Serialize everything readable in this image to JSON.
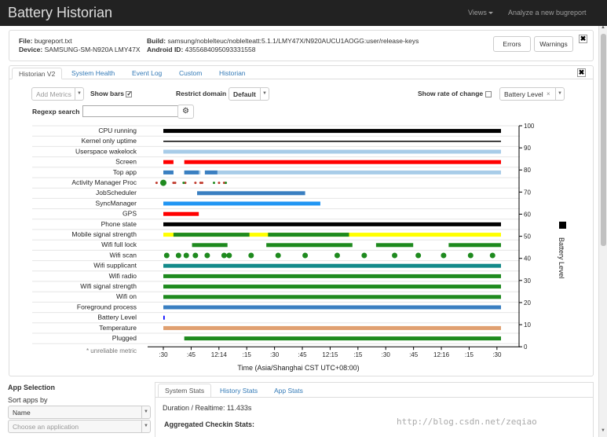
{
  "navbar": {
    "brand": "Battery Historian",
    "views_label": "Views",
    "analyze_label": "Analyze a new bugreport"
  },
  "file_info": {
    "file_label": "File:",
    "file_value": "bugreport.txt",
    "device_label": "Device:",
    "device_value": "SAMSUNG-SM-N920A LMY47X",
    "build_label": "Build:",
    "build_value": "samsung/noblelteuc/noblelteatt:5.1.1/LMY47X/N920AUCU1AOGG:user/release-keys",
    "android_id_label": "Android ID:",
    "android_id_value": "4355684095093331558",
    "errors_button": "Errors",
    "warnings_button": "Warnings",
    "close_glyph": "✖"
  },
  "tabs": [
    "Historian V2",
    "System Health",
    "Event Log",
    "Custom",
    "Historian"
  ],
  "controls": {
    "add_metrics_placeholder": "Add Metrics",
    "show_bars_label": "Show bars",
    "show_bars_checked": true,
    "restrict_domain_label": "Restrict domain",
    "restrict_domain_value": "Default",
    "show_rate_label": "Show rate of change",
    "show_rate_checked": false,
    "battery_level_chip": "Battery Level",
    "regexp_label": "Regexp search",
    "regexp_value": "",
    "settings_glyph": "⚙"
  },
  "chart_data": {
    "type": "timeline",
    "rows": [
      "CPU running",
      "Kernel only uptime",
      "Userspace wakelock",
      "Screen",
      "Top app",
      "Activity Manager Proc",
      "JobScheduler",
      "SyncManager",
      "GPS",
      "Phone state",
      "Mobile signal strength",
      "Wifi full lock",
      "Wifi scan",
      "Wifi supplicant",
      "Wifi radio",
      "Wifi signal strength",
      "Wifi on",
      "Foreground process",
      "Battery Level",
      "Temperature",
      "Plugged"
    ],
    "unreliable_note": "* unreliable metric",
    "x_ticks": [
      ":30",
      ":45",
      "12:14",
      ":15",
      ":30",
      ":45",
      "12:15",
      ":15",
      ":30",
      ":45",
      "12:16",
      ":15",
      ":30"
    ],
    "xlabel": "Time (Asia/Shanghai CST UTC+08:00)",
    "y2_ticks": [
      "100",
      "90",
      "80",
      "70",
      "60",
      "50",
      "40",
      "30",
      "20",
      "10",
      "0"
    ],
    "y2label": "Battery Level",
    "y2lim": [
      0,
      100
    ],
    "grid": false,
    "x_domain": [
      0,
      100
    ],
    "bars": [
      {
        "row": 0,
        "segments": [
          [
            0,
            100
          ]
        ],
        "color": "#000000"
      },
      {
        "row": 1,
        "segments": [
          [
            0,
            100
          ]
        ],
        "color": "#000000",
        "thin": true
      },
      {
        "row": 2,
        "segments": [
          [
            0,
            100
          ]
        ],
        "color": "#a8cce8"
      },
      {
        "row": 3,
        "segments": [
          [
            0,
            3
          ],
          [
            6.2,
            100
          ]
        ],
        "color": "#ff0000"
      },
      {
        "row": 4,
        "segments": [
          [
            0,
            3
          ],
          [
            6.2,
            11
          ],
          [
            12.3,
            100
          ]
        ],
        "color": "#a8cce8"
      },
      {
        "row": 4,
        "segments": [
          [
            0,
            3
          ],
          [
            6.2,
            10.5
          ],
          [
            12.3,
            16
          ]
        ],
        "color": "#3a7fc1"
      },
      {
        "row": 6,
        "segments": [
          [
            10,
            42
          ]
        ],
        "color": "#3a7fc1"
      },
      {
        "row": 7,
        "segments": [
          [
            0,
            46.5
          ]
        ],
        "color": "#2196f3"
      },
      {
        "row": 8,
        "segments": [
          [
            0,
            10.5
          ]
        ],
        "color": "#ff0000"
      },
      {
        "row": 9,
        "segments": [
          [
            0,
            100
          ]
        ],
        "color": "#000000"
      },
      {
        "row": 10,
        "segments": [
          [
            0,
            100
          ]
        ],
        "color": "#ffff00"
      },
      {
        "row": 10,
        "segments": [
          [
            3,
            25.5
          ],
          [
            31,
            55
          ]
        ],
        "color": "#1e8a1e"
      },
      {
        "row": 11,
        "segments": [
          [
            8.5,
            19
          ],
          [
            30.5,
            56
          ],
          [
            63,
            74
          ],
          [
            84.5,
            100
          ]
        ],
        "color": "#1e8a1e"
      },
      {
        "row": 13,
        "segments": [
          [
            0,
            100
          ]
        ],
        "color": "#138a8a"
      },
      {
        "row": 14,
        "segments": [
          [
            0,
            100
          ]
        ],
        "color": "#1e8a1e"
      },
      {
        "row": 15,
        "segments": [
          [
            0,
            100
          ]
        ],
        "color": "#1e8a1e"
      },
      {
        "row": 16,
        "segments": [
          [
            0,
            100
          ]
        ],
        "color": "#1e8a1e"
      },
      {
        "row": 17,
        "segments": [
          [
            0,
            100
          ]
        ],
        "color": "#3a7fc1"
      },
      {
        "row": 18,
        "segments": [
          [
            0,
            0.4
          ]
        ],
        "color": "#0000ff"
      },
      {
        "row": 19,
        "segments": [
          [
            0,
            100
          ]
        ],
        "color": "#e0a070"
      },
      {
        "row": 20,
        "segments": [
          [
            6.2,
            100
          ]
        ],
        "color": "#1e8a1e"
      }
    ],
    "points": [
      {
        "row": 5,
        "x": [
          -2,
          -0.5,
          3,
          3.5,
          6.5,
          9.5,
          11,
          11.5,
          16.5,
          18
        ],
        "color": "#c0392b",
        "size": 1.5
      },
      {
        "row": 5,
        "x": [
          0,
          6,
          15,
          18.5
        ],
        "color": "#1e8a1e",
        "size": 1.5
      },
      {
        "row": 5,
        "x": [
          0
        ],
        "color": "#1e8a1e",
        "size": 4
      },
      {
        "row": 12,
        "x": [
          1,
          4.5,
          6.8,
          9.5,
          13,
          18,
          19.5,
          26,
          34,
          42,
          51.5,
          59.5,
          68.5,
          75.5,
          83,
          91,
          97.5
        ],
        "color": "#1e8a1e",
        "size": 3.5
      }
    ],
    "mobile_signal_full_green_to": 55
  },
  "app_selection": {
    "title": "App Selection",
    "sort_label": "Sort apps by",
    "sort_value": "Name",
    "choose_placeholder": "Choose an application"
  },
  "stats": {
    "tabs": [
      "System Stats",
      "History Stats",
      "App Stats"
    ],
    "duration_text": "Duration / Realtime: 11.433s",
    "aggregated_title": "Aggregated Checkin Stats:"
  },
  "watermark": "http://blog.csdn.net/zeqiao",
  "colors": {
    "navbar_bg": "#222222",
    "link": "#337ab7"
  }
}
